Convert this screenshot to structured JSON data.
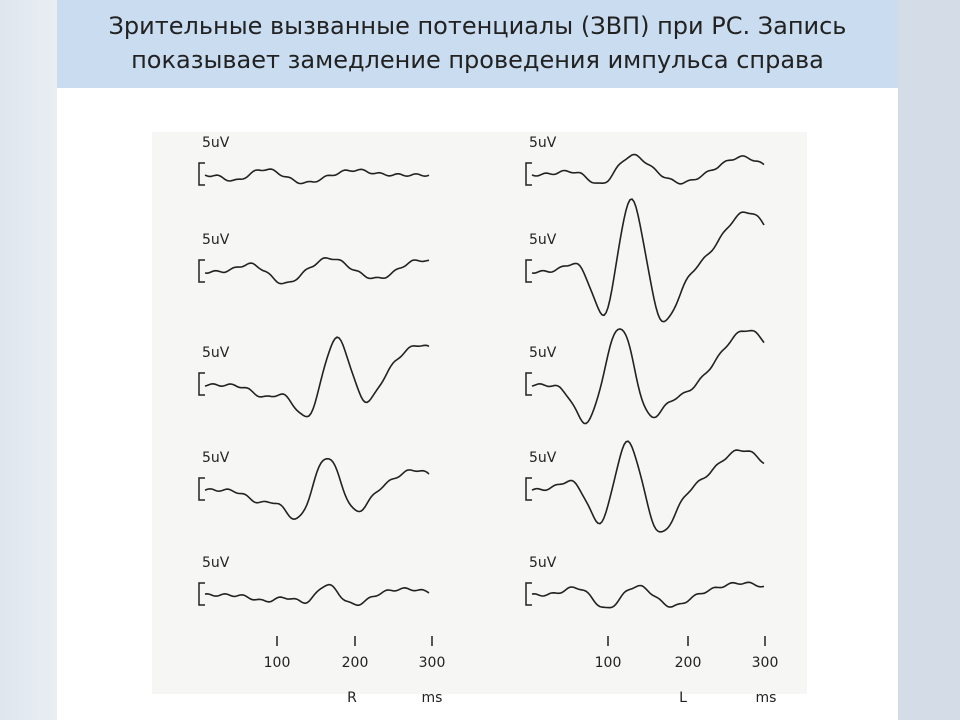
{
  "header": {
    "title_lines": [
      "Зрительные вызванные потенциалы (ЗВП) при РС. Запись",
      "показывает замедление проведения импульса справа"
    ]
  },
  "figure": {
    "panels": [
      {
        "scale_labels": [
          "5uV",
          "5uV",
          "5uV",
          "5uV",
          "5uV"
        ],
        "ticks": [
          "100",
          "200",
          "300"
        ],
        "side": "R",
        "unit": "ms"
      },
      {
        "scale_labels": [
          "5uV",
          "5uV",
          "5uV",
          "5uV",
          "5uV"
        ],
        "ticks": [
          "100",
          "200",
          "300"
        ],
        "side": "L",
        "unit": "ms"
      }
    ]
  }
}
